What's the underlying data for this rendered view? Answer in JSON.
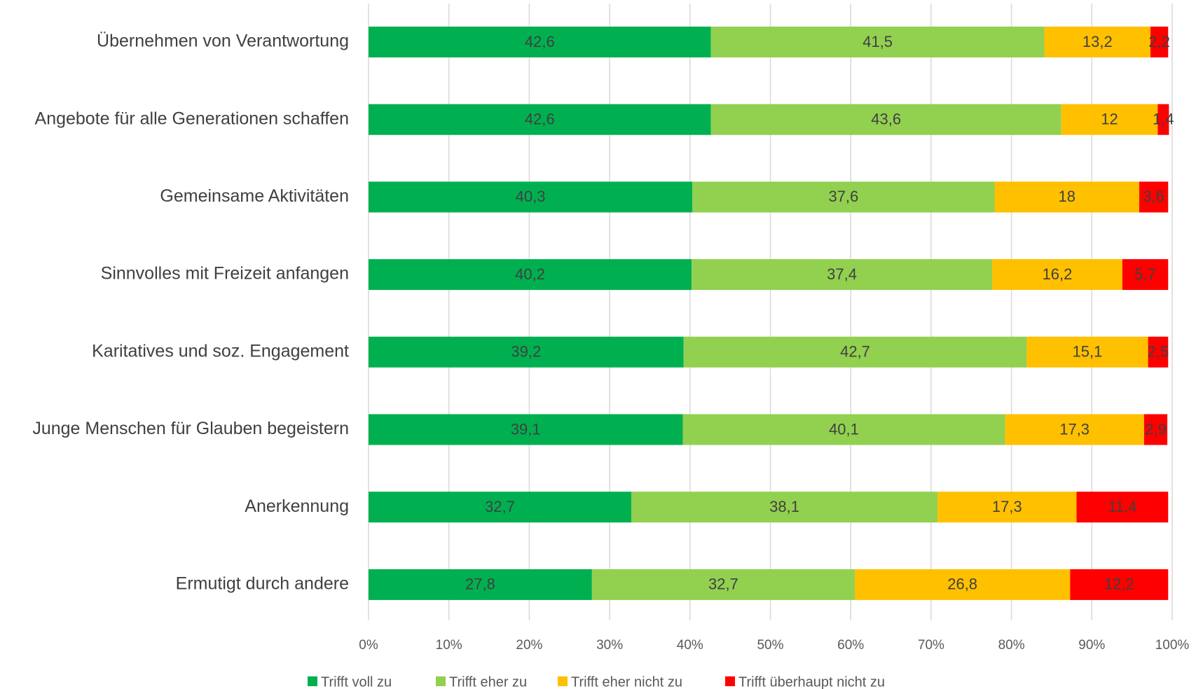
{
  "chart_data": {
    "type": "stacked_bar_horizontal",
    "categories": [
      "Übernehmen von Verantwortung",
      "Angebote für alle Generationen schaffen",
      "Gemeinsame Aktivitäten",
      "Sinnvolles mit Freizeit anfangen",
      "Karitatives und soz. Engagement",
      "Junge Menschen für Glauben begeistern",
      "Anerkennung",
      "Ermutigt durch andere"
    ],
    "series": [
      {
        "name": "Trifft voll zu",
        "color": "#00b050",
        "values": [
          42.6,
          42.6,
          40.3,
          40.2,
          39.2,
          39.1,
          32.7,
          27.8
        ],
        "value_labels": [
          "42,6",
          "42,6",
          "40,3",
          "40,2",
          "39,2",
          "39,1",
          "32,7",
          "27,8"
        ]
      },
      {
        "name": "Trifft eher zu",
        "color": "#92d050",
        "values": [
          41.5,
          43.6,
          37.6,
          37.4,
          42.7,
          40.1,
          38.1,
          32.7
        ],
        "value_labels": [
          "41,5",
          "43,6",
          "37,6",
          "37,4",
          "42,7",
          "40,1",
          "38,1",
          "32,7"
        ]
      },
      {
        "name": "Trifft eher nicht zu",
        "color": "#ffc000",
        "values": [
          13.2,
          12,
          18,
          16.2,
          15.1,
          17.3,
          17.3,
          26.8
        ],
        "value_labels": [
          "13,2",
          "12",
          "18",
          "16,2",
          "15,1",
          "17,3",
          "17,3",
          "26,8"
        ]
      },
      {
        "name": "Trifft überhaupt nicht zu",
        "color": "#ff0000",
        "values": [
          2.2,
          1.4,
          3.6,
          5.7,
          2.5,
          2.9,
          11.4,
          12.2
        ],
        "value_labels": [
          "2,2",
          "1,4",
          "3,6",
          "5,7",
          "2,5",
          "2,9",
          "11,4",
          "12,2"
        ]
      }
    ],
    "xlim": [
      0,
      100
    ],
    "xticks": [
      {
        "value": 0,
        "label": "0%"
      },
      {
        "value": 10,
        "label": "10%"
      },
      {
        "value": 20,
        "label": "20%"
      },
      {
        "value": 30,
        "label": "30%"
      },
      {
        "value": 40,
        "label": "40%"
      },
      {
        "value": 50,
        "label": "50%"
      },
      {
        "value": 60,
        "label": "60%"
      },
      {
        "value": 70,
        "label": "70%"
      },
      {
        "value": 80,
        "label": "80%"
      },
      {
        "value": 90,
        "label": "90%"
      },
      {
        "value": 100,
        "label": "100%"
      }
    ],
    "grid": true,
    "legend": "bottom"
  }
}
